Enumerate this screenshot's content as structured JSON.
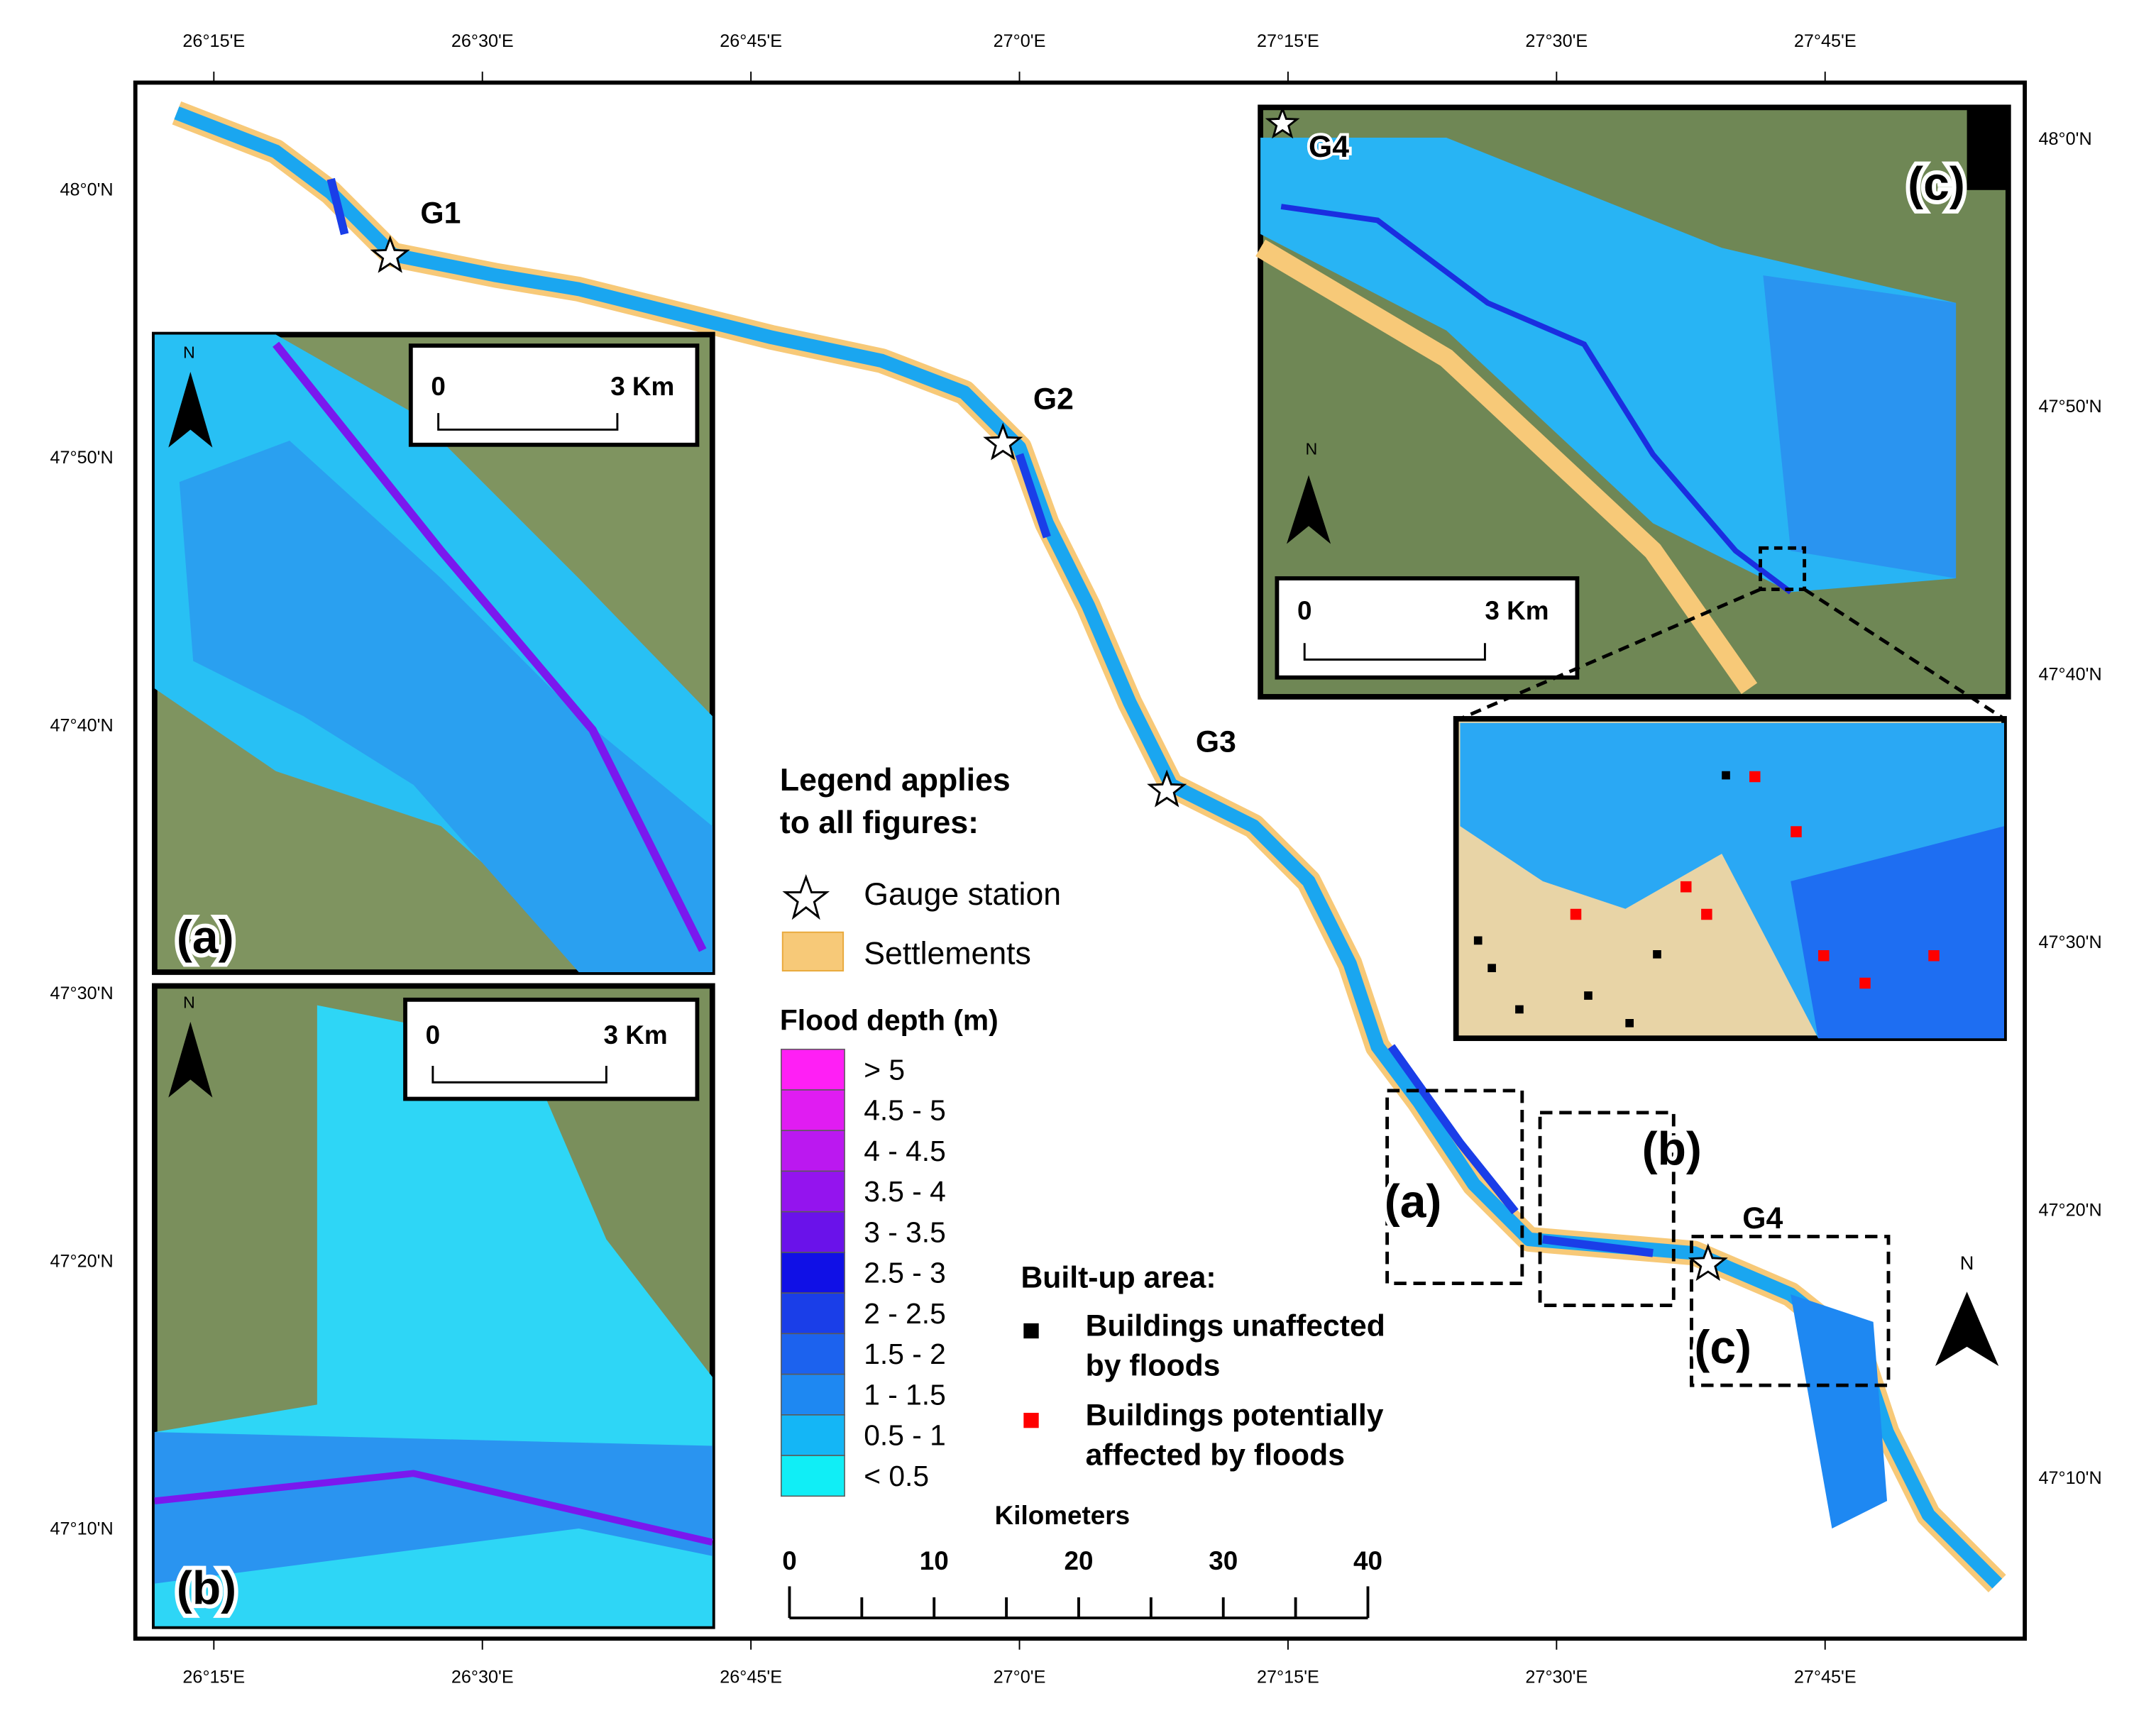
{
  "graticule": {
    "top": [
      "26°15'E",
      "26°30'E",
      "26°45'E",
      "27°0'E",
      "27°15'E",
      "27°30'E",
      "27°45'E"
    ],
    "bottom": [
      "26°15'E",
      "26°30'E",
      "26°45'E",
      "27°0'E",
      "27°15'E",
      "27°30'E",
      "27°45'E"
    ],
    "left": [
      "48°0'N",
      "47°50'N",
      "47°40'N",
      "47°30'N",
      "47°20'N",
      "47°10'N"
    ],
    "right": [
      "48°0'N",
      "47°50'N",
      "47°40'N",
      "47°30'N",
      "47°20'N",
      "47°10'N"
    ]
  },
  "gauges": [
    "G1",
    "G2",
    "G3",
    "G4"
  ],
  "insets": [
    {
      "label": "(a)",
      "scale_start": "0",
      "scale_end": "3 Km",
      "north": "N"
    },
    {
      "label": "(b)",
      "scale_start": "0",
      "scale_end": "3 Km",
      "north": "N"
    },
    {
      "label": "(c)",
      "scale_start": "0",
      "scale_end": "3 Km",
      "north": "N",
      "gauge": "G4"
    }
  ],
  "map_boxes": [
    "(a)",
    "(b)",
    "(c)"
  ],
  "legend": {
    "title_lines": [
      "Legend applies",
      "to all figures:"
    ],
    "gauge": "Gauge station",
    "settlements": "Settlements",
    "flood_title": "Flood depth (m)",
    "flood_classes": [
      {
        "label": "> 5",
        "color": "#ff1ff5"
      },
      {
        "label": "4.5 - 5",
        "color": "#e01cf2"
      },
      {
        "label": "4 - 4.5",
        "color": "#bb18f0"
      },
      {
        "label": "3.5 - 4",
        "color": "#9414ee"
      },
      {
        "label": "3 - 3.5",
        "color": "#6a12ea"
      },
      {
        "label": "2.5 - 3",
        "color": "#1010e6"
      },
      {
        "label": "2 - 2.5",
        "color": "#1a3ee8"
      },
      {
        "label": "1.5 - 2",
        "color": "#1c62ee"
      },
      {
        "label": "1 - 1.5",
        "color": "#1e88f2"
      },
      {
        "label": "0.5 - 1",
        "color": "#14b6f6"
      },
      {
        "label": "< 0.5",
        "color": "#10eef6"
      }
    ],
    "builtup_title": "Built-up area:",
    "buildings": [
      {
        "lines": [
          "Buildings unaffected",
          "by floods"
        ],
        "color": "#000000"
      },
      {
        "lines": [
          "Buildings potentially",
          "affected by floods"
        ],
        "color": "#ff0000"
      }
    ]
  },
  "scale_bar": {
    "title": "Kilometers",
    "ticks": [
      0,
      10,
      20,
      30,
      40
    ]
  },
  "north": "N"
}
